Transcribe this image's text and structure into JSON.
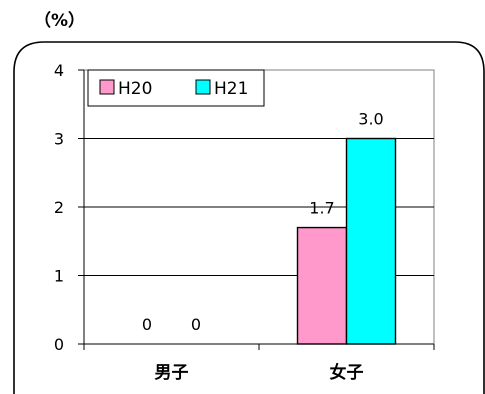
{
  "unit_label": "（%）",
  "chart_data": {
    "type": "bar",
    "categories": [
      "男子",
      "女子"
    ],
    "series": [
      {
        "name": "H20",
        "values": [
          0,
          1.7
        ],
        "labels": [
          "0",
          "1.7"
        ],
        "color": "#ff99cc"
      },
      {
        "name": "H21",
        "values": [
          0,
          3.0
        ],
        "labels": [
          "0",
          "3.0"
        ],
        "color": "#00ffff"
      }
    ],
    "y_ticks": [
      "0",
      "1",
      "2",
      "3",
      "4"
    ],
    "ylim": [
      0,
      4
    ],
    "grid": true,
    "legend": "top-left"
  }
}
